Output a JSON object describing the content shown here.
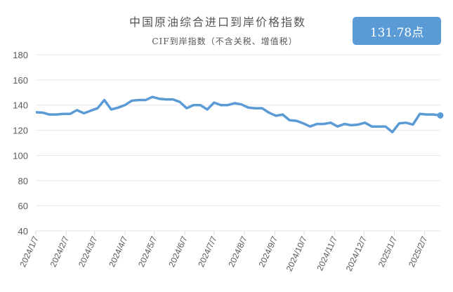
{
  "chart_data": {
    "type": "line",
    "title": "中国原油综合进口到岸价格指数",
    "subtitle": "CIF到岸指数（不含关税、增值税）",
    "badge": "131.78点",
    "ylim": [
      40,
      180
    ],
    "yticks": [
      40,
      60,
      80,
      100,
      120,
      140,
      160,
      180
    ],
    "xticks": [
      "2024/1/7",
      "2024/2/7",
      "2024/3/7",
      "2024/4/7",
      "2024/5/7",
      "2024/6/7",
      "2024/7/7",
      "2024/8/7",
      "2024/9/7",
      "2024/10/7",
      "2024/11/7",
      "2024/12/7",
      "2025/1/7",
      "2025/2/7"
    ],
    "grid": true,
    "color": "#5b9bd5",
    "x_start": "2024-01-07",
    "x_step_days": 7,
    "values": [
      134.3,
      134,
      132.5,
      132.5,
      133,
      133,
      136,
      133.5,
      135.5,
      137.5,
      144,
      136.5,
      138,
      140,
      143.5,
      144,
      144,
      146.5,
      145,
      144.5,
      144.5,
      142.5,
      137.5,
      140,
      140,
      136.5,
      142,
      140,
      140,
      141.5,
      140.5,
      138,
      137.5,
      137.5,
      134,
      131.5,
      132.5,
      128,
      127.5,
      125.5,
      123,
      125,
      125,
      126,
      123,
      125,
      124,
      124.5,
      126,
      123,
      123,
      123,
      118.5,
      125.5,
      126,
      124.5,
      133,
      132.5,
      132.5,
      131.78
    ]
  }
}
